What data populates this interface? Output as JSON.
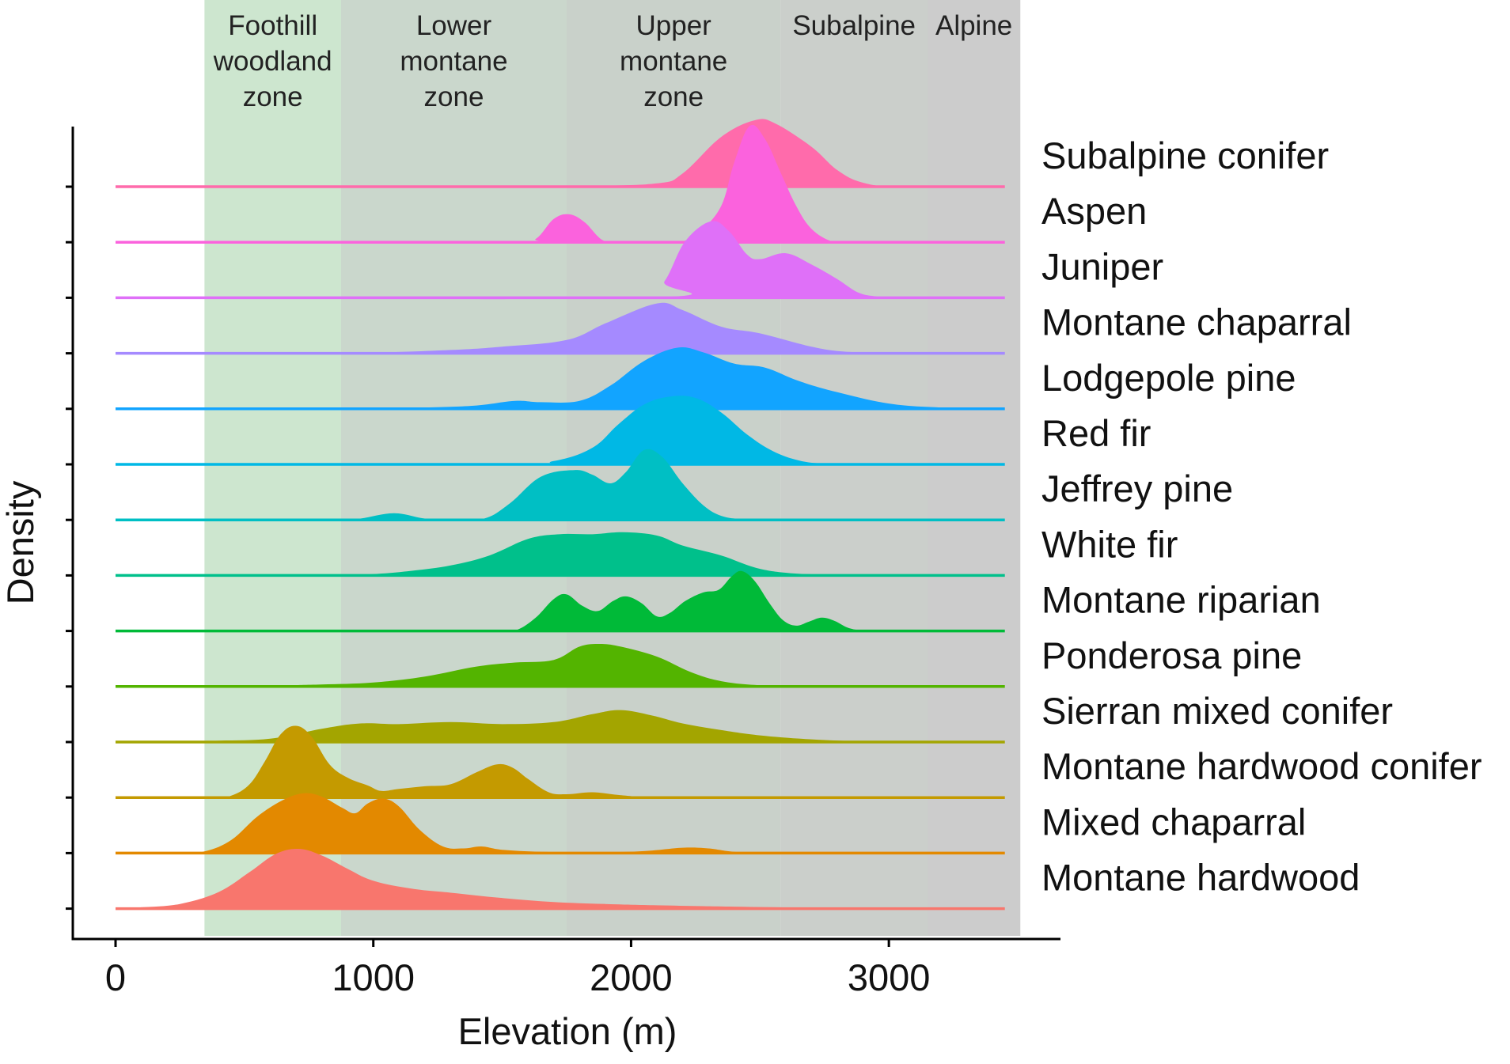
{
  "chart_data": {
    "type": "ridgeline-density",
    "xlabel": "Elevation (m)",
    "ylabel": "Density",
    "xlim": [
      -170,
      3610
    ],
    "x_ticks": [
      0,
      1000,
      2000,
      3000
    ],
    "x_tick_labels": [
      "0",
      "1000",
      "2000",
      "3000"
    ],
    "grid": false,
    "legend": "none (series labelled at right)",
    "zones": [
      {
        "lines": [
          "Foothill",
          "woodland",
          "zone"
        ],
        "from": 345,
        "to": 875,
        "color": "#cde6cf"
      },
      {
        "lines": [
          "Lower",
          "montane",
          "zone"
        ],
        "from": 875,
        "to": 1750,
        "color": "#cad7cc"
      },
      {
        "lines": [
          "Upper",
          "montane",
          "zone"
        ],
        "from": 1750,
        "to": 2580,
        "color": "#c9d1ca"
      },
      {
        "lines": [
          "Subalpine"
        ],
        "from": 2580,
        "to": 3150,
        "color": "#cbcfcb"
      },
      {
        "lines": [
          "Alpine"
        ],
        "from": 3150,
        "to": 3510,
        "color": "#cccccc"
      }
    ],
    "series": [
      {
        "name": "Subalpine conifer",
        "color": "#ff6bab",
        "points": [
          [
            0,
            0
          ],
          [
            1300,
            0
          ],
          [
            1800,
            0.01
          ],
          [
            2100,
            0.05
          ],
          [
            2200,
            0.2
          ],
          [
            2350,
            0.75
          ],
          [
            2480,
            1.0
          ],
          [
            2560,
            0.95
          ],
          [
            2700,
            0.6
          ],
          [
            2800,
            0.25
          ],
          [
            2900,
            0.06
          ],
          [
            3050,
            0
          ],
          [
            3450,
            0
          ]
        ]
      },
      {
        "name": "Aspen",
        "color": "#fb62dd",
        "points": [
          [
            0,
            0
          ],
          [
            1550,
            0
          ],
          [
            1630,
            0.05
          ],
          [
            1700,
            0.35
          ],
          [
            1760,
            0.42
          ],
          [
            1820,
            0.3
          ],
          [
            1890,
            0.03
          ],
          [
            1960,
            0
          ],
          [
            2180,
            0
          ],
          [
            2270,
            0.18
          ],
          [
            2350,
            0.55
          ],
          [
            2400,
            1.2
          ],
          [
            2460,
            1.75
          ],
          [
            2520,
            1.55
          ],
          [
            2580,
            1.05
          ],
          [
            2640,
            0.55
          ],
          [
            2700,
            0.2
          ],
          [
            2780,
            0.01
          ],
          [
            2850,
            0
          ],
          [
            3450,
            0
          ]
        ]
      },
      {
        "name": "Juniper",
        "color": "#df70f8",
        "points": [
          [
            0,
            0
          ],
          [
            2050,
            0
          ],
          [
            2130,
            0.25
          ],
          [
            2210,
            0.85
          ],
          [
            2310,
            1.15
          ],
          [
            2380,
            1.0
          ],
          [
            2450,
            0.65
          ],
          [
            2500,
            0.58
          ],
          [
            2600,
            0.67
          ],
          [
            2700,
            0.5
          ],
          [
            2800,
            0.28
          ],
          [
            2880,
            0.08
          ],
          [
            2950,
            0.02
          ],
          [
            3030,
            0
          ],
          [
            3450,
            0
          ]
        ]
      },
      {
        "name": "Montane chaparral",
        "color": "#a58aff",
        "points": [
          [
            0,
            0
          ],
          [
            700,
            0
          ],
          [
            1000,
            0.01
          ],
          [
            1300,
            0.05
          ],
          [
            1500,
            0.1
          ],
          [
            1750,
            0.2
          ],
          [
            1900,
            0.45
          ],
          [
            2100,
            0.75
          ],
          [
            2200,
            0.65
          ],
          [
            2350,
            0.4
          ],
          [
            2500,
            0.3
          ],
          [
            2700,
            0.1
          ],
          [
            2850,
            0.02
          ],
          [
            3100,
            0
          ],
          [
            3450,
            0
          ]
        ]
      },
      {
        "name": "Lodgepole pine",
        "color": "#12a4ff",
        "points": [
          [
            0,
            0
          ],
          [
            900,
            0
          ],
          [
            1200,
            0.02
          ],
          [
            1400,
            0.05
          ],
          [
            1550,
            0.12
          ],
          [
            1650,
            0.1
          ],
          [
            1800,
            0.12
          ],
          [
            1920,
            0.35
          ],
          [
            2050,
            0.72
          ],
          [
            2180,
            0.92
          ],
          [
            2280,
            0.85
          ],
          [
            2400,
            0.68
          ],
          [
            2520,
            0.62
          ],
          [
            2650,
            0.42
          ],
          [
            2800,
            0.25
          ],
          [
            3000,
            0.08
          ],
          [
            3200,
            0.02
          ],
          [
            3450,
            0
          ]
        ]
      },
      {
        "name": "Red fir",
        "color": "#00b8e5",
        "points": [
          [
            0,
            0
          ],
          [
            1500,
            0
          ],
          [
            1700,
            0.05
          ],
          [
            1850,
            0.25
          ],
          [
            1950,
            0.6
          ],
          [
            2050,
            0.9
          ],
          [
            2150,
            1.02
          ],
          [
            2250,
            1.0
          ],
          [
            2350,
            0.78
          ],
          [
            2450,
            0.45
          ],
          [
            2550,
            0.2
          ],
          [
            2650,
            0.06
          ],
          [
            2750,
            0.01
          ],
          [
            2900,
            0
          ],
          [
            3450,
            0
          ]
        ]
      },
      {
        "name": "Jeffrey pine",
        "color": "#00bfc4",
        "points": [
          [
            0,
            0
          ],
          [
            850,
            0
          ],
          [
            950,
            0.02
          ],
          [
            1080,
            0.1
          ],
          [
            1200,
            0.02
          ],
          [
            1300,
            0
          ],
          [
            1430,
            0.02
          ],
          [
            1530,
            0.25
          ],
          [
            1650,
            0.65
          ],
          [
            1780,
            0.75
          ],
          [
            1850,
            0.68
          ],
          [
            1920,
            0.55
          ],
          [
            1980,
            0.72
          ],
          [
            2050,
            1.05
          ],
          [
            2120,
            0.95
          ],
          [
            2200,
            0.55
          ],
          [
            2280,
            0.22
          ],
          [
            2350,
            0.06
          ],
          [
            2430,
            0.01
          ],
          [
            2500,
            0
          ],
          [
            3450,
            0
          ]
        ]
      },
      {
        "name": "White fir",
        "color": "#00c08b",
        "points": [
          [
            0,
            0
          ],
          [
            800,
            0
          ],
          [
            1000,
            0.02
          ],
          [
            1150,
            0.07
          ],
          [
            1300,
            0.15
          ],
          [
            1450,
            0.3
          ],
          [
            1600,
            0.55
          ],
          [
            1720,
            0.62
          ],
          [
            1850,
            0.62
          ],
          [
            1970,
            0.65
          ],
          [
            2100,
            0.6
          ],
          [
            2200,
            0.45
          ],
          [
            2350,
            0.3
          ],
          [
            2480,
            0.12
          ],
          [
            2600,
            0.04
          ],
          [
            2750,
            0.01
          ],
          [
            2900,
            0
          ],
          [
            3450,
            0
          ]
        ]
      },
      {
        "name": "Montane riparian",
        "color": "#00ba38",
        "points": [
          [
            0,
            0
          ],
          [
            1500,
            0
          ],
          [
            1560,
            0.02
          ],
          [
            1630,
            0.2
          ],
          [
            1700,
            0.48
          ],
          [
            1750,
            0.55
          ],
          [
            1810,
            0.38
          ],
          [
            1870,
            0.3
          ],
          [
            1930,
            0.45
          ],
          [
            1980,
            0.52
          ],
          [
            2040,
            0.42
          ],
          [
            2100,
            0.22
          ],
          [
            2150,
            0.27
          ],
          [
            2210,
            0.45
          ],
          [
            2280,
            0.58
          ],
          [
            2340,
            0.62
          ],
          [
            2390,
            0.82
          ],
          [
            2430,
            0.9
          ],
          [
            2480,
            0.75
          ],
          [
            2540,
            0.4
          ],
          [
            2590,
            0.16
          ],
          [
            2640,
            0.08
          ],
          [
            2690,
            0.14
          ],
          [
            2740,
            0.2
          ],
          [
            2790,
            0.15
          ],
          [
            2840,
            0.05
          ],
          [
            2890,
            0.01
          ],
          [
            2950,
            0
          ],
          [
            3450,
            0
          ]
        ]
      },
      {
        "name": "Ponderosa pine",
        "color": "#53b400",
        "points": [
          [
            0,
            0
          ],
          [
            300,
            0
          ],
          [
            450,
            0.01
          ],
          [
            650,
            0.02
          ],
          [
            800,
            0.03
          ],
          [
            1000,
            0.06
          ],
          [
            1200,
            0.15
          ],
          [
            1400,
            0.3
          ],
          [
            1550,
            0.36
          ],
          [
            1700,
            0.4
          ],
          [
            1800,
            0.6
          ],
          [
            1880,
            0.64
          ],
          [
            1960,
            0.6
          ],
          [
            2100,
            0.45
          ],
          [
            2230,
            0.22
          ],
          [
            2350,
            0.08
          ],
          [
            2500,
            0.02
          ],
          [
            2700,
            0.01
          ],
          [
            2900,
            0
          ],
          [
            3450,
            0
          ]
        ]
      },
      {
        "name": "Sierran mixed conifer",
        "color": "#a3a500",
        "points": [
          [
            0,
            0
          ],
          [
            200,
            0
          ],
          [
            400,
            0.02
          ],
          [
            600,
            0.05
          ],
          [
            800,
            0.2
          ],
          [
            950,
            0.28
          ],
          [
            1100,
            0.27
          ],
          [
            1300,
            0.3
          ],
          [
            1500,
            0.27
          ],
          [
            1700,
            0.3
          ],
          [
            1850,
            0.42
          ],
          [
            1960,
            0.48
          ],
          [
            2080,
            0.4
          ],
          [
            2200,
            0.28
          ],
          [
            2350,
            0.18
          ],
          [
            2500,
            0.1
          ],
          [
            2700,
            0.04
          ],
          [
            2900,
            0.01
          ],
          [
            3100,
            0
          ],
          [
            3450,
            0
          ]
        ]
      },
      {
        "name": "Montane hardwood conifer",
        "color": "#c49a00",
        "points": [
          [
            0,
            0
          ],
          [
            380,
            0
          ],
          [
            450,
            0.03
          ],
          [
            520,
            0.2
          ],
          [
            580,
            0.55
          ],
          [
            640,
            0.95
          ],
          [
            700,
            1.08
          ],
          [
            760,
            0.92
          ],
          [
            830,
            0.5
          ],
          [
            900,
            0.3
          ],
          [
            980,
            0.18
          ],
          [
            1030,
            0.1
          ],
          [
            1100,
            0.13
          ],
          [
            1200,
            0.17
          ],
          [
            1300,
            0.2
          ],
          [
            1400,
            0.38
          ],
          [
            1480,
            0.5
          ],
          [
            1540,
            0.45
          ],
          [
            1600,
            0.28
          ],
          [
            1680,
            0.08
          ],
          [
            1750,
            0.05
          ],
          [
            1850,
            0.08
          ],
          [
            1950,
            0.04
          ],
          [
            2050,
            0.01
          ],
          [
            2200,
            0
          ],
          [
            3450,
            0
          ]
        ]
      },
      {
        "name": "Mixed chaparral",
        "color": "#e38900",
        "points": [
          [
            0,
            0
          ],
          [
            250,
            0
          ],
          [
            350,
            0.03
          ],
          [
            450,
            0.2
          ],
          [
            550,
            0.55
          ],
          [
            650,
            0.8
          ],
          [
            730,
            0.9
          ],
          [
            800,
            0.85
          ],
          [
            880,
            0.68
          ],
          [
            930,
            0.6
          ],
          [
            980,
            0.75
          ],
          [
            1040,
            0.82
          ],
          [
            1100,
            0.7
          ],
          [
            1180,
            0.35
          ],
          [
            1270,
            0.1
          ],
          [
            1350,
            0.07
          ],
          [
            1420,
            0.1
          ],
          [
            1500,
            0.05
          ],
          [
            1650,
            0.02
          ],
          [
            1850,
            0.01
          ],
          [
            2050,
            0.03
          ],
          [
            2200,
            0.08
          ],
          [
            2300,
            0.07
          ],
          [
            2400,
            0.02
          ],
          [
            2550,
            0
          ],
          [
            3450,
            0
          ]
        ]
      },
      {
        "name": "Montane hardwood",
        "color": "#f8766d",
        "points": [
          [
            0,
            0
          ],
          [
            100,
            0.02
          ],
          [
            250,
            0.07
          ],
          [
            400,
            0.25
          ],
          [
            520,
            0.55
          ],
          [
            620,
            0.82
          ],
          [
            710,
            0.9
          ],
          [
            800,
            0.8
          ],
          [
            900,
            0.6
          ],
          [
            1000,
            0.42
          ],
          [
            1150,
            0.3
          ],
          [
            1300,
            0.24
          ],
          [
            1500,
            0.16
          ],
          [
            1700,
            0.1
          ],
          [
            1900,
            0.07
          ],
          [
            2100,
            0.05
          ],
          [
            2400,
            0.03
          ],
          [
            2800,
            0.01
          ],
          [
            3200,
            0
          ],
          [
            3450,
            0
          ]
        ]
      }
    ]
  }
}
